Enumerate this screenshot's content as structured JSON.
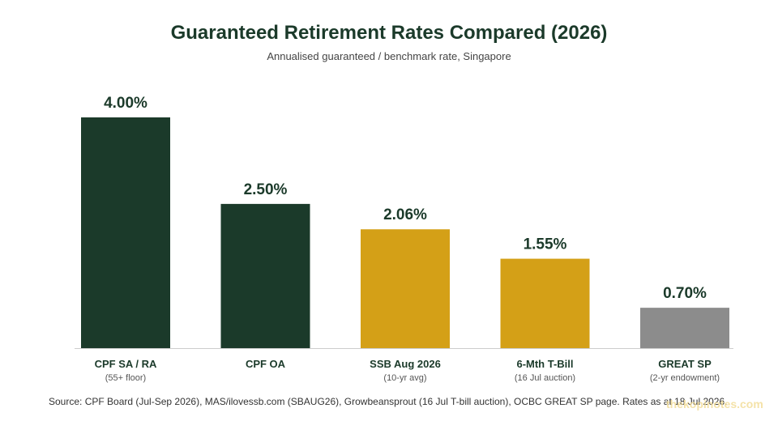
{
  "chart_data": {
    "type": "bar",
    "title": "Guaranteed Retirement Rates Compared (2026)",
    "subtitle": "Annualised guaranteed / benchmark rate, Singapore",
    "categories": [
      "CPF SA / RA",
      "CPF OA",
      "SSB Aug 2026",
      "6-Mth T-Bill",
      "GREAT SP"
    ],
    "sublabels": [
      "(55+ floor)",
      "",
      "(10-yr avg)",
      "(16 Jul auction)",
      "(2-yr endowment)"
    ],
    "values": [
      4.0,
      2.5,
      2.06,
      1.55,
      0.7
    ],
    "value_labels": [
      "4.00%",
      "2.50%",
      "2.06%",
      "1.55%",
      "0.70%"
    ],
    "colors": [
      "#1b3a2a",
      "#1b3a2a",
      "#d4a017",
      "#d4a017",
      "#8c8c8c"
    ],
    "ylim": [
      0,
      4.0
    ],
    "grid": false,
    "legend": "none"
  },
  "source": "Source: CPF Board (Jul-Sep 2026), MAS/ilovessb.com (SBAUG26), Growbeansprout (16 Jul T-bill auction), OCBC GREAT SP page. Rates as at 18 Jul 2026.",
  "watermark": "thekopinotes.com"
}
